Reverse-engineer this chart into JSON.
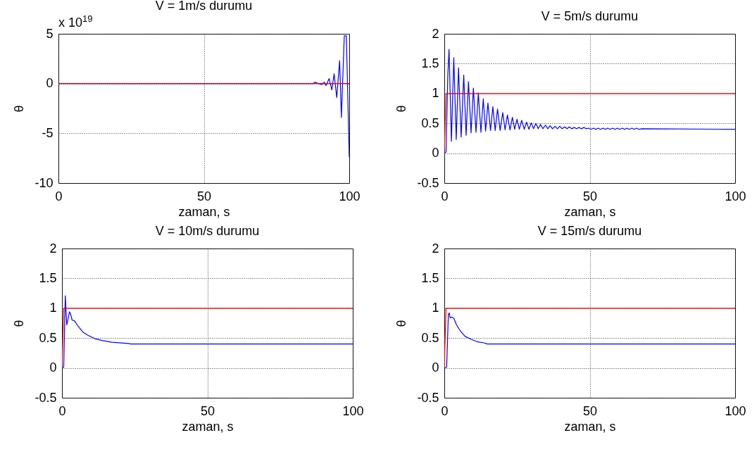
{
  "chart_data": [
    {
      "type": "line",
      "title": "V = 1m/s durumu",
      "xlabel": "zaman, s",
      "ylabel": "θ",
      "annotations": [
        "x 10$^{19}$"
      ],
      "xlim": [
        0,
        100
      ],
      "xticks": [
        0,
        50,
        100
      ],
      "ylim": [
        -10,
        5
      ],
      "yticks": [
        -10,
        -5,
        0,
        5
      ],
      "grid": true,
      "series": [
        {
          "color": "#0000ff",
          "x": [
            0,
            87.4,
            88.2,
            89.4,
            90.6,
            91.4,
            92.0,
            93.1,
            94.0,
            94.8,
            95.7,
            96.7,
            97.3,
            98.3,
            99.0,
            100
          ],
          "values": [
            0,
            0,
            0.14,
            0,
            -0.1,
            0.14,
            -0.2,
            0.5,
            -0.64,
            0.98,
            -1.4,
            2.3,
            -3.4,
            4.8,
            4.8,
            -7.4
          ]
        },
        {
          "color": "#ff0000",
          "x": [
            0,
            100
          ],
          "values": [
            0,
            0
          ]
        }
      ]
    },
    {
      "type": "line",
      "title": "V = 5m/s durumu",
      "xlabel": "zaman, s",
      "ylabel": "θ",
      "xlim": [
        0,
        100
      ],
      "xticks": [
        0,
        50,
        100
      ],
      "ylim": [
        -0.5,
        2
      ],
      "yticks": [
        -0.5,
        0,
        0.5,
        1,
        1.5,
        2
      ],
      "grid": true,
      "series": [
        {
          "color": "#0000ff",
          "x": [
            0,
            0.6,
            1.2,
            1.63,
            2.45,
            3.26,
            4.1,
            4.89,
            5.8,
            6.68,
            7.5,
            8.31,
            9.2,
            10.0,
            10.9,
            11.7,
            12.6,
            13.4,
            14.2,
            15.0,
            15.9,
            16.7,
            17.5,
            18.3,
            19.2,
            20.1,
            20.9,
            21.7,
            22.6,
            23.4,
            24.2,
            25.0,
            25.8,
            26.6,
            27.5,
            28.3,
            29.1,
            29.9,
            30.7,
            31.5,
            32.3,
            33.1,
            33.9,
            34.8,
            35.6,
            36.4,
            37.2,
            38.1,
            38.9,
            39.7,
            40.5,
            41.4,
            42.2,
            43.0,
            43.8,
            44.7,
            45.5,
            46.3,
            47.1,
            48.0,
            48.8,
            49.6,
            50.4,
            51.3,
            52.1,
            52.9,
            53.7,
            54.6,
            55.4,
            56.2,
            57.0,
            57.9,
            58.7,
            59.5,
            60.3,
            61.2,
            62.0,
            62.8,
            63.6,
            64.5,
            65.3,
            66.1,
            67.0,
            68.0,
            100
          ],
          "values": [
            0,
            0.02,
            1.3,
            1.74,
            0.2,
            1.6,
            0.23,
            1.43,
            0.27,
            1.31,
            0.3,
            1.2,
            0.34,
            1.09,
            0.35,
            1.01,
            0.35,
            0.91,
            0.37,
            0.84,
            0.38,
            0.78,
            0.38,
            0.74,
            0.38,
            0.68,
            0.39,
            0.64,
            0.39,
            0.6,
            0.4,
            0.57,
            0.4,
            0.55,
            0.4,
            0.52,
            0.4,
            0.51,
            0.41,
            0.5,
            0.41,
            0.48,
            0.41,
            0.47,
            0.41,
            0.46,
            0.41,
            0.45,
            0.41,
            0.45,
            0.41,
            0.44,
            0.41,
            0.44,
            0.41,
            0.43,
            0.41,
            0.43,
            0.41,
            0.43,
            0.41,
            0.42,
            0.4,
            0.42,
            0.4,
            0.42,
            0.4,
            0.42,
            0.4,
            0.42,
            0.4,
            0.42,
            0.4,
            0.42,
            0.4,
            0.42,
            0.4,
            0.42,
            0.4,
            0.42,
            0.4,
            0.42,
            0.4,
            0.41,
            0.4
          ]
        },
        {
          "color": "#ff0000",
          "x": [
            0,
            0.6,
            100
          ],
          "values": [
            0,
            1,
            1
          ]
        }
      ]
    },
    {
      "type": "line",
      "title": "V = 10m/s durumu",
      "xlabel": "zaman, s",
      "ylabel": "θ",
      "xlim": [
        0,
        100
      ],
      "xticks": [
        0,
        50,
        100
      ],
      "ylim": [
        -0.5,
        2
      ],
      "yticks": [
        -0.5,
        0,
        0.5,
        1,
        1.5,
        2
      ],
      "grid": true,
      "series": [
        {
          "color": "#0000ff",
          "x": [
            0,
            0.6,
            1.15,
            1.65,
            2.6,
            3.0,
            3.5,
            4.3,
            5.5,
            7.2,
            8.8,
            11.3,
            13.8,
            17.1,
            22.8,
            23.6,
            100
          ],
          "values": [
            0,
            0.01,
            1.21,
            0.72,
            0.94,
            0.9,
            0.8,
            0.79,
            0.7,
            0.6,
            0.55,
            0.49,
            0.46,
            0.43,
            0.41,
            0.4,
            0.4
          ]
        },
        {
          "color": "#ff0000",
          "x": [
            0,
            0.6,
            100
          ],
          "values": [
            0,
            1,
            1
          ]
        }
      ]
    },
    {
      "type": "line",
      "title": "V = 15m/s durumu",
      "xlabel": "zaman, s",
      "ylabel": "θ",
      "xlim": [
        0,
        100
      ],
      "xticks": [
        0,
        50,
        100
      ],
      "ylim": [
        -0.5,
        2
      ],
      "yticks": [
        -0.5,
        0,
        0.5,
        1,
        1.5,
        2
      ],
      "grid": true,
      "series": [
        {
          "color": "#0000ff",
          "x": [
            0,
            0.8,
            1.4,
            1.7,
            2.0,
            2.6,
            3.3,
            4.2,
            5.5,
            7.1,
            8.7,
            11.2,
            13.6,
            14.8,
            100
          ],
          "values": [
            0,
            0.01,
            0.9,
            0.92,
            0.84,
            0.85,
            0.83,
            0.72,
            0.62,
            0.53,
            0.49,
            0.44,
            0.42,
            0.4,
            0.4
          ]
        },
        {
          "color": "#ff0000",
          "x": [
            0,
            0.6,
            100
          ],
          "values": [
            0,
            1,
            1
          ]
        }
      ]
    }
  ]
}
